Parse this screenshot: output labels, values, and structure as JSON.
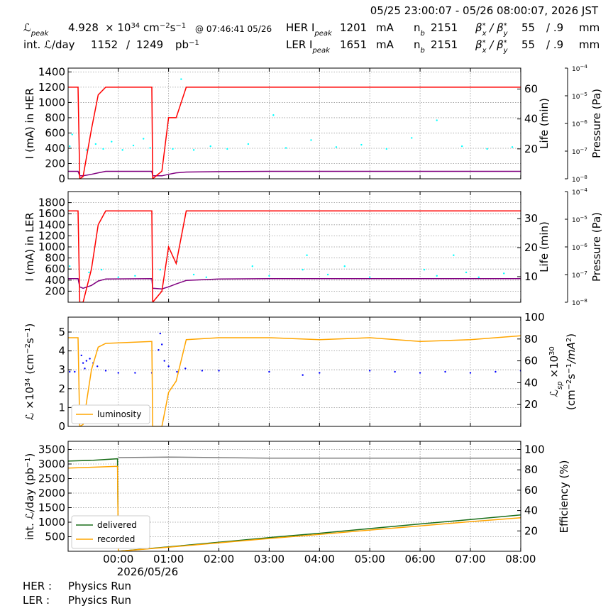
{
  "header": {
    "time_range": "05/25 23:00:07 - 05/26 08:00:07, 2026 JST",
    "lpeak": [
      "ℒ",
      "peak"
    ],
    "lpeak_value": "4.928",
    "lpeak_unit": [
      "× 10",
      "34",
      " cm",
      "−2",
      "s",
      "−1"
    ],
    "lpeak_time": "@ 07:46:41 05/26",
    "int_label": "int. ℒ/day",
    "int_recorded": "1152",
    "int_sep": "/",
    "int_delivered": "1249",
    "int_unit": [
      "pb",
      "−1"
    ],
    "her_ipeak_label": [
      "HER I",
      "peak"
    ],
    "her_ipeak": "1201",
    "her_unit": "mA",
    "her_nb_label": [
      "n",
      "b"
    ],
    "her_nb": "2151",
    "her_beta_label": [
      "β",
      "*",
      "x",
      " / β",
      "*",
      "y"
    ],
    "her_beta_x": "55",
    "her_beta_y": "/ .9",
    "her_beta_unit": "mm",
    "ler_ipeak_label": [
      "LER I",
      "peak"
    ],
    "ler_ipeak": "1651",
    "ler_unit": "mA",
    "ler_nb_label": [
      "n",
      "b"
    ],
    "ler_nb": "2151",
    "ler_beta_label": [
      "β",
      "*",
      "x",
      " / β",
      "*",
      "y"
    ],
    "ler_beta_x": "55",
    "ler_beta_y": "/ .9",
    "ler_beta_unit": "mm"
  },
  "chart_data": [
    {
      "type": "line",
      "ylabel": "I (mA) in HER",
      "y2label": "Life (min)",
      "y3label": "Pressure (Pa)",
      "grid": true,
      "x": [
        "2026-05-25T23:00:07",
        "2026-05-25T23:12",
        "2026-05-25T23:14",
        "2026-05-25T23:18",
        "2026-05-25T23:28",
        "2026-05-25T23:36",
        "2026-05-25T23:45",
        "2026-05-26T00:40",
        "2026-05-26T00:41",
        "2026-05-26T00:52",
        "2026-05-26T01:00",
        "2026-05-26T01:09",
        "2026-05-26T01:21",
        "2026-05-26T02:00",
        "2026-05-26T03:00",
        "2026-05-26T04:00",
        "2026-05-26T05:00",
        "2026-05-26T06:00",
        "2026-05-26T07:00",
        "2026-05-26T08:00:07"
      ],
      "xlim": [
        "2026-05-25T23:00:07",
        "2026-05-26T08:00:07"
      ],
      "xticks": [
        "2026-05-26T00:00",
        "2026-05-26T01:00",
        "2026-05-26T02:00",
        "2026-05-26T03:00",
        "2026-05-26T04:00",
        "2026-05-26T05:00",
        "2026-05-26T06:00",
        "2026-05-26T07:00",
        "2026-05-26T08:00"
      ],
      "ylim": [
        0,
        1450
      ],
      "yticks": [
        0,
        200,
        400,
        600,
        800,
        1000,
        1200,
        1400
      ],
      "y2lim": [
        0,
        74
      ],
      "y2ticks": [
        20,
        40,
        60
      ],
      "y3lim": [
        1e-08,
        0.0001
      ],
      "y3log": true,
      "y3ticks": [
        {
          "value": 1e-08,
          "label": [
            "10",
            "−8"
          ]
        },
        {
          "value": 1e-07,
          "label": [
            "10",
            "−7"
          ]
        },
        {
          "value": 1e-06,
          "label": [
            "10",
            "−6"
          ]
        },
        {
          "value": 1e-05,
          "label": [
            "10",
            "−5"
          ]
        },
        {
          "value": 0.0001,
          "label": [
            "10",
            "−4"
          ]
        }
      ],
      "series": [
        {
          "type": "scatter",
          "axis": "y3",
          "color": "#00ffff",
          "x": [
            "2026-05-25T23:02",
            "2026-05-25T23:05",
            "2026-05-25T23:22",
            "2026-05-25T23:33",
            "2026-05-25T23:42",
            "2026-05-25T23:52",
            "2026-05-26T00:05",
            "2026-05-26T00:18",
            "2026-05-26T00:30",
            "2026-05-26T00:38",
            "2026-05-26T01:05",
            "2026-05-26T01:15",
            "2026-05-26T01:30",
            "2026-05-26T01:50",
            "2026-05-26T02:10",
            "2026-05-26T02:35",
            "2026-05-26T03:05",
            "2026-05-26T03:20",
            "2026-05-26T03:50",
            "2026-05-26T04:20",
            "2026-05-26T04:50",
            "2026-05-26T05:20",
            "2026-05-26T05:50",
            "2026-05-26T06:20",
            "2026-05-26T06:50",
            "2026-05-26T07:20",
            "2026-05-26T07:50"
          ],
          "values": [
            1.5e-07,
            4e-07,
            1.1e-07,
            1.8e-07,
            1.2e-07,
            2.2e-07,
            1.1e-07,
            1.6e-07,
            2.8e-07,
            1.3e-07,
            1.2e-07,
            4e-05,
            1.1e-07,
            1.5e-07,
            1.2e-07,
            1.8e-07,
            2e-06,
            1.3e-07,
            2.5e-07,
            1.4e-07,
            1.7e-07,
            1.2e-07,
            3e-07,
            1.3e-06,
            1.5e-07,
            1.2e-07,
            1.4e-07
          ]
        },
        {
          "axis": "y2",
          "color": "#800080",
          "values": [
            5,
            5,
            2,
            2,
            3,
            4,
            5,
            5,
            2,
            2,
            3,
            4,
            4.5,
            4.8,
            5,
            5,
            5,
            5,
            5,
            5
          ]
        },
        {
          "color": "#ff0000",
          "values": [
            1200,
            1200,
            0,
            30,
            650,
            1100,
            1200,
            1200,
            0,
            100,
            800,
            800,
            1200,
            1200,
            1200,
            1200,
            1200,
            1200,
            1200,
            1200
          ]
        }
      ]
    },
    {
      "type": "line",
      "ylabel": "I (mA) in LER",
      "y2label": "Life (min)",
      "y3label": "Pressure (Pa)",
      "grid": true,
      "x": [
        "2026-05-25T23:00:07",
        "2026-05-25T23:12",
        "2026-05-25T23:14",
        "2026-05-25T23:18",
        "2026-05-25T23:28",
        "2026-05-25T23:36",
        "2026-05-25T23:45",
        "2026-05-26T00:40",
        "2026-05-26T00:41",
        "2026-05-26T00:52",
        "2026-05-26T01:00",
        "2026-05-26T01:09",
        "2026-05-26T01:21",
        "2026-05-26T02:00",
        "2026-05-26T03:00",
        "2026-05-26T04:00",
        "2026-05-26T05:00",
        "2026-05-26T06:00",
        "2026-05-26T07:00",
        "2026-05-26T08:00:07"
      ],
      "xlim": [
        "2026-05-25T23:00:07",
        "2026-05-26T08:00:07"
      ],
      "xticks": [
        "2026-05-26T00:00",
        "2026-05-26T01:00",
        "2026-05-26T02:00",
        "2026-05-26T03:00",
        "2026-05-26T04:00",
        "2026-05-26T05:00",
        "2026-05-26T06:00",
        "2026-05-26T07:00",
        "2026-05-26T08:00"
      ],
      "ylim": [
        0,
        2000
      ],
      "yticks": [
        200,
        400,
        600,
        800,
        1000,
        1200,
        1400,
        1600,
        1800
      ],
      "y2lim": [
        1.2,
        39.3
      ],
      "y2ticks": [
        10,
        20,
        30
      ],
      "y3lim": [
        1e-08,
        0.0001
      ],
      "y3log": true,
      "y3ticks": [
        {
          "value": 1e-08,
          "label": [
            "10",
            "−8"
          ]
        },
        {
          "value": 1e-07,
          "label": [
            "10",
            "−7"
          ]
        },
        {
          "value": 1e-06,
          "label": [
            "10",
            "−6"
          ]
        },
        {
          "value": 1e-05,
          "label": [
            "10",
            "−5"
          ]
        },
        {
          "value": 0.0001,
          "label": [
            "10",
            "−4"
          ]
        }
      ],
      "series": [
        {
          "type": "scatter",
          "axis": "y3",
          "color": "#00ffff",
          "x": [
            "2026-05-25T23:02",
            "2026-05-25T23:25",
            "2026-05-25T23:40",
            "2026-05-26T00:00",
            "2026-05-26T00:20",
            "2026-05-26T00:50",
            "2026-05-26T01:10",
            "2026-05-26T01:30",
            "2026-05-26T01:45",
            "2026-05-26T02:40",
            "2026-05-26T03:00",
            "2026-05-26T03:40",
            "2026-05-26T03:45",
            "2026-05-26T04:10",
            "2026-05-26T04:30",
            "2026-05-26T05:00",
            "2026-05-26T06:05",
            "2026-05-26T06:20",
            "2026-05-26T06:40",
            "2026-05-26T06:55",
            "2026-05-26T07:10",
            "2026-05-26T07:40"
          ],
          "values": [
            2e-07,
            1.2e-07,
            1.5e-07,
            8e-08,
            9e-08,
            1.5e-07,
            3e-07,
            1e-07,
            8e-08,
            2e-07,
            9e-08,
            1.5e-07,
            5e-07,
            1e-07,
            2e-07,
            8e-08,
            1.5e-07,
            9e-08,
            5e-07,
            1.2e-07,
            8e-08,
            1.1e-07
          ]
        },
        {
          "axis": "y2",
          "color": "#800080",
          "values": [
            9.3,
            9.3,
            6.5,
            6,
            7,
            8.5,
            9.2,
            9.3,
            6,
            5.8,
            6.5,
            7.5,
            8.7,
            9.2,
            9.3,
            9.3,
            9.3,
            9.3,
            9.3,
            9.3
          ]
        },
        {
          "color": "#ff0000",
          "values": [
            1650,
            1650,
            0,
            0,
            600,
            1400,
            1650,
            1650,
            0,
            200,
            1000,
            700,
            1650,
            1650,
            1650,
            1650,
            1650,
            1650,
            1650,
            1650
          ]
        }
      ]
    },
    {
      "type": "line",
      "ylabel": [
        "ℒ ×10",
        "34",
        " (cm",
        "−2",
        "s",
        "−1",
        ")"
      ],
      "y2label": [
        [
          "ℒ",
          "sp",
          " ×10",
          "30"
        ],
        [
          "(cm",
          "−2",
          "s",
          "−1",
          "/mA",
          "2",
          ")"
        ]
      ],
      "grid": true,
      "legend": "lower left",
      "x": [
        "2026-05-25T23:00:07",
        "2026-05-25T23:12",
        "2026-05-25T23:14",
        "2026-05-25T23:18",
        "2026-05-25T23:28",
        "2026-05-25T23:36",
        "2026-05-25T23:45",
        "2026-05-26T00:40",
        "2026-05-26T00:41",
        "2026-05-26T00:52",
        "2026-05-26T01:00",
        "2026-05-26T01:09",
        "2026-05-26T01:21",
        "2026-05-26T02:00",
        "2026-05-26T03:00",
        "2026-05-26T04:00",
        "2026-05-26T05:00",
        "2026-05-26T06:00",
        "2026-05-26T07:00",
        "2026-05-26T08:00:07"
      ],
      "xlim": [
        "2026-05-25T23:00:07",
        "2026-05-26T08:00:07"
      ],
      "xticks": [
        "2026-05-26T00:00",
        "2026-05-26T01:00",
        "2026-05-26T02:00",
        "2026-05-26T03:00",
        "2026-05-26T04:00",
        "2026-05-26T05:00",
        "2026-05-26T06:00",
        "2026-05-26T07:00",
        "2026-05-26T08:00"
      ],
      "ylim": [
        0,
        5.79
      ],
      "yticks": [
        0,
        1,
        2,
        3,
        4,
        5
      ],
      "y2lim": [
        0,
        100
      ],
      "y2ticks": [
        20,
        40,
        60,
        80,
        100
      ],
      "series": [
        {
          "type": "scatter",
          "axis": "y2",
          "color": "#0000ff",
          "x": [
            "2026-05-25T23:02",
            "2026-05-25T23:08",
            "2026-05-25T23:16",
            "2026-05-25T23:18",
            "2026-05-25T23:20",
            "2026-05-25T23:22",
            "2026-05-25T23:26",
            "2026-05-25T23:30",
            "2026-05-25T23:35",
            "2026-05-25T23:45",
            "2026-05-26T00:00",
            "2026-05-26T00:20",
            "2026-05-26T00:40",
            "2026-05-26T00:48",
            "2026-05-26T00:50",
            "2026-05-26T00:52",
            "2026-05-26T00:55",
            "2026-05-26T01:00",
            "2026-05-26T01:10",
            "2026-05-26T01:20",
            "2026-05-26T01:40",
            "2026-05-26T02:00",
            "2026-05-26T03:00",
            "2026-05-26T03:40",
            "2026-05-26T04:00",
            "2026-05-26T05:00",
            "2026-05-26T05:30",
            "2026-05-26T06:00",
            "2026-05-26T06:30",
            "2026-05-26T07:00",
            "2026-05-26T07:30",
            "2026-05-26T08:00"
          ],
          "values": [
            50,
            50,
            65,
            58,
            53,
            60,
            62,
            58,
            55,
            51,
            49,
            49,
            49,
            70,
            85,
            75,
            60,
            55,
            50,
            53,
            51,
            51,
            50,
            47,
            49,
            51,
            50,
            49,
            50,
            49,
            50,
            51
          ]
        },
        {
          "name": "luminosity",
          "color": "#ffa500",
          "values": [
            4.7,
            4.7,
            0,
            0.1,
            3,
            4.2,
            4.4,
            4.5,
            0,
            0,
            1.8,
            2.4,
            4.6,
            4.7,
            4.7,
            4.6,
            4.7,
            4.5,
            4.6,
            4.8
          ]
        }
      ]
    },
    {
      "type": "line",
      "ylabel": [
        "int. ℒ/day (pb",
        "−1",
        ")"
      ],
      "y2label": "Efficiency (%)",
      "grid": true,
      "legend": "lower left",
      "x": [
        "2026-05-25T23:00:07",
        "2026-05-25T23:30",
        "2026-05-25T23:59",
        "2026-05-26T00:00",
        "2026-05-26T01:00",
        "2026-05-26T02:00",
        "2026-05-26T03:00",
        "2026-05-26T04:00",
        "2026-05-26T05:00",
        "2026-05-26T06:00",
        "2026-05-26T07:00",
        "2026-05-26T08:00:07"
      ],
      "xlim": [
        "2026-05-25T23:00:07",
        "2026-05-26T08:00:07"
      ],
      "xticks": [
        {
          "value": "2026-05-26T00:00",
          "label": "00:00"
        },
        {
          "value": "2026-05-26T01:00",
          "label": "01:00"
        },
        {
          "value": "2026-05-26T02:00",
          "label": "02:00"
        },
        {
          "value": "2026-05-26T03:00",
          "label": "03:00"
        },
        {
          "value": "2026-05-26T04:00",
          "label": "04:00"
        },
        {
          "value": "2026-05-26T05:00",
          "label": "05:00"
        },
        {
          "value": "2026-05-26T06:00",
          "label": "06:00"
        },
        {
          "value": "2026-05-26T07:00",
          "label": "07:00"
        },
        {
          "value": "2026-05-26T08:00",
          "label": "08:00"
        }
      ],
      "xdate_label": "2026/05/26",
      "ylim": [
        0,
        3780
      ],
      "yticks": [
        500,
        1000,
        1500,
        2000,
        2500,
        3000,
        3500
      ],
      "y2lim": [
        0,
        108
      ],
      "y2ticks": [
        20,
        40,
        60,
        80,
        100
      ],
      "series": [
        {
          "axis": "y2",
          "color": "#808080",
          "values": [
            null,
            null,
            null,
            92,
            92.5,
            92,
            91.5,
            91.5,
            91.5,
            91.5,
            91.5,
            91.5
          ]
        },
        {
          "name": "delivered",
          "color": "#1a6e1a",
          "values": [
            3100,
            3130,
            3180,
            0,
            150,
            310,
            470,
            620,
            780,
            940,
            1090,
            1249
          ]
        },
        {
          "name": "recorded",
          "color": "#ffa500",
          "values": [
            2860,
            2890,
            2920,
            0,
            140,
            290,
            440,
            580,
            730,
            870,
            1020,
            1152
          ]
        }
      ]
    }
  ],
  "footer": {
    "her_label": "HER :",
    "her_status": "Physics Run",
    "ler_label": "LER :",
    "ler_status": "Physics Run"
  }
}
